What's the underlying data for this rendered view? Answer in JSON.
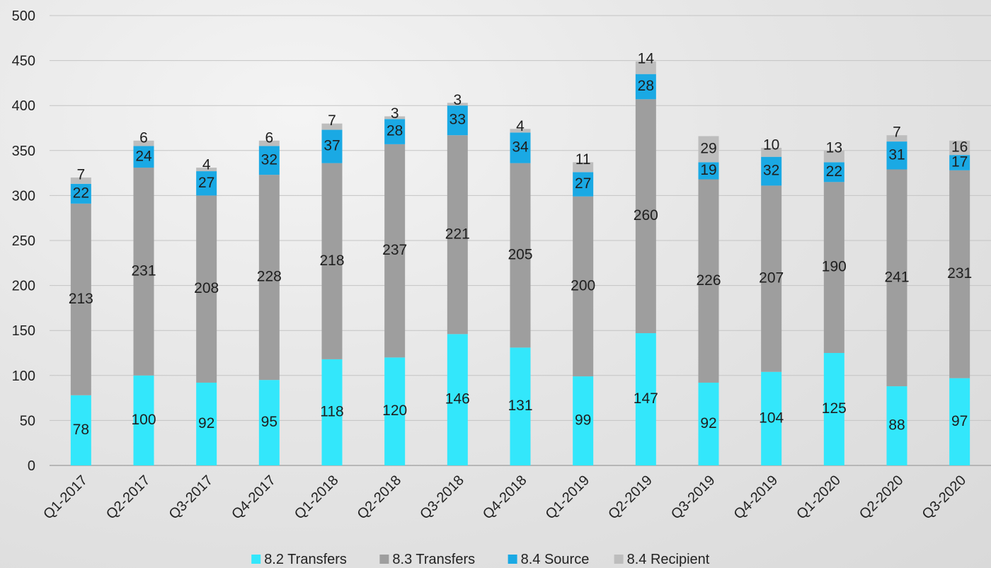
{
  "chart_data": {
    "type": "bar",
    "stacked": true,
    "categories": [
      "Q1-2017",
      "Q2-2017",
      "Q3-2017",
      "Q4-2017",
      "Q1-2018",
      "Q2-2018",
      "Q3-2018",
      "Q4-2018",
      "Q1-2019",
      "Q2-2019",
      "Q3-2019",
      "Q4-2019",
      "Q1-2020",
      "Q2-2020",
      "Q3-2020"
    ],
    "series": [
      {
        "name": "8.2 Transfers",
        "color": "#33e7fb",
        "values": [
          78,
          100,
          92,
          95,
          118,
          120,
          146,
          131,
          99,
          147,
          92,
          104,
          125,
          88,
          97
        ]
      },
      {
        "name": "8.3 Transfers",
        "color": "#9e9e9e",
        "values": [
          213,
          231,
          208,
          228,
          218,
          237,
          221,
          205,
          200,
          260,
          226,
          207,
          190,
          241,
          231
        ]
      },
      {
        "name": "8.4 Source",
        "color": "#1aa9e4",
        "values": [
          22,
          24,
          27,
          32,
          37,
          28,
          33,
          34,
          27,
          28,
          19,
          32,
          22,
          31,
          17
        ]
      },
      {
        "name": "8.4 Recipient",
        "color": "#bdbdbd",
        "values": [
          7,
          6,
          4,
          6,
          7,
          3,
          3,
          4,
          11,
          14,
          29,
          10,
          13,
          7,
          16
        ]
      }
    ],
    "ylim": [
      0,
      500
    ],
    "yticks": [
      "0",
      "50",
      "100",
      "150",
      "200",
      "250",
      "300",
      "350",
      "400",
      "450",
      "500"
    ],
    "grid": true,
    "legend_position": "bottom"
  }
}
